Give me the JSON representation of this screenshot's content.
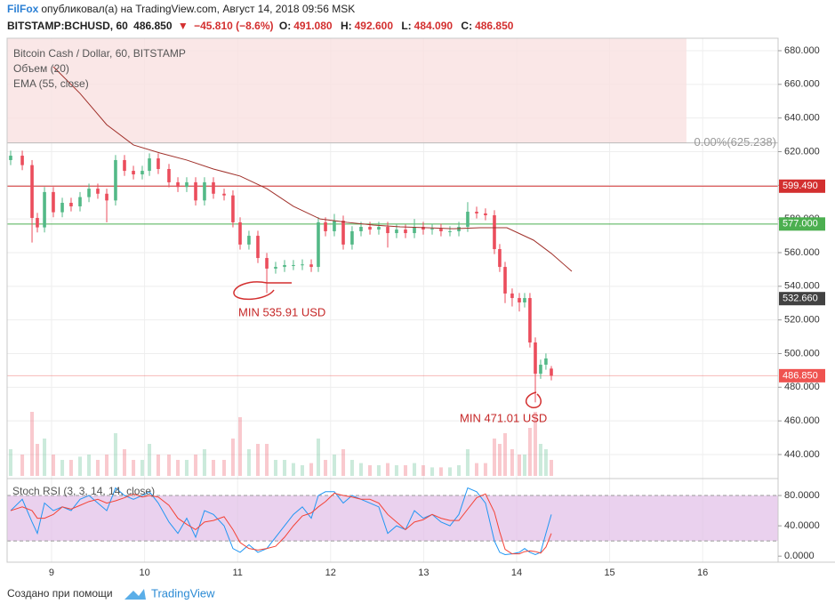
{
  "header": {
    "author": "FilFox",
    "published": "опубликовал(а) на TradingView.com, Август 14, 2018 09:56 MSK",
    "symbol": "BITSTAMP:BCHUSD, 60",
    "price": "486.850",
    "direction": "▼",
    "change": "−45.810 (−8.6%)",
    "ohlc": [
      {
        "label": "O:",
        "value": "491.080"
      },
      {
        "label": "H:",
        "value": "492.600"
      },
      {
        "label": "L:",
        "value": "484.090"
      },
      {
        "label": "C:",
        "value": "486.850"
      }
    ]
  },
  "footer": {
    "text": "Создано при помощи",
    "brand": "TradingView"
  },
  "chart_data": [
    {
      "type": "candlestick",
      "title": "Bitcoin Cash / Dollar, 60, BITSTAMP",
      "up_color": "#53b987",
      "down_color": "#eb4d5c",
      "grid": true,
      "x": [
        8.56,
        8.685,
        8.79,
        8.847,
        8.924,
        9.019,
        9.115,
        9.21,
        9.306,
        9.402,
        9.497,
        9.593,
        9.688,
        9.784,
        9.88,
        9.975,
        10.052,
        10.147,
        10.262,
        10.358,
        10.453,
        10.549,
        10.644,
        10.74,
        10.855,
        10.95,
        11.027,
        11.122,
        11.218,
        11.314,
        11.409,
        11.505,
        11.6,
        11.696,
        11.792,
        11.868,
        11.945,
        12.04,
        12.136,
        12.231,
        12.327,
        12.423,
        12.518,
        12.614,
        12.709,
        12.805,
        12.901,
        12.996,
        13.092,
        13.187,
        13.283,
        13.379,
        13.474,
        13.57,
        13.665,
        13.761,
        13.818,
        13.876,
        13.952,
        14.029,
        14.086,
        14.143,
        14.201,
        14.258,
        14.315,
        14.373
      ],
      "open": [
        615,
        617.6,
        612,
        580.6,
        575,
        596,
        584,
        589.6,
        587.5,
        593,
        598,
        595,
        591,
        615,
        608.6,
        606.5,
        608.6,
        616,
        609.7,
        601.8,
        599,
        601.8,
        591,
        601.8,
        595,
        594,
        578,
        564.8,
        570,
        556.8,
        550.5,
        551.5,
        552.6,
        552.6,
        553,
        551.5,
        578,
        572.7,
        579,
        564.8,
        572.7,
        575.3,
        573.7,
        575.3,
        571.6,
        573.7,
        571.6,
        575.3,
        573.7,
        574.2,
        572.7,
        572.7,
        575.3,
        584.3,
        583.3,
        582.2,
        562.1,
        551.5,
        535.7,
        533,
        530.4,
        533,
        506.6,
        488,
        493.4,
        491.08
      ],
      "high": [
        620.6,
        620.6,
        615,
        583.6,
        599,
        599,
        592.6,
        592.6,
        596,
        601,
        601,
        598,
        618,
        618,
        611.6,
        611.6,
        619,
        619,
        612.7,
        604.8,
        604.8,
        604.8,
        604.8,
        604.8,
        598,
        597,
        581,
        573,
        573,
        559.8,
        554.5,
        555.6,
        555.6,
        556,
        556,
        581,
        581,
        583,
        582,
        575.7,
        578.3,
        578.3,
        578.3,
        578.3,
        576.7,
        576.7,
        580,
        578.3,
        577.2,
        577.2,
        575.7,
        578.3,
        590,
        587.3,
        586.3,
        585.2,
        565.1,
        554.5,
        538.7,
        536,
        536,
        536,
        509.6,
        496.4,
        500.1,
        492.6
      ],
      "low": [
        612,
        609,
        566,
        572,
        572,
        581,
        581,
        584.5,
        584.5,
        590,
        592,
        578,
        588,
        605.6,
        603.5,
        603.5,
        605.6,
        606.7,
        598.8,
        596,
        596,
        588,
        588,
        592,
        591,
        575,
        561.8,
        561.8,
        553.8,
        535.91,
        547.5,
        548.5,
        549.6,
        549.6,
        548.5,
        548.5,
        569.7,
        569.7,
        561.8,
        561.8,
        569.7,
        570.7,
        570.7,
        563,
        568.6,
        568.6,
        568.6,
        570.7,
        570.7,
        569.7,
        569.7,
        569.7,
        572.3,
        580.3,
        579.2,
        559.1,
        548.5,
        530,
        528,
        525,
        527.4,
        503.6,
        471.01,
        485,
        490.4,
        484.09
      ],
      "close": [
        617.6,
        612,
        580.6,
        575,
        596,
        584,
        589.6,
        587.5,
        593,
        598,
        595,
        591,
        615,
        608.6,
        606.5,
        608.6,
        616,
        609.7,
        601.8,
        599,
        601.8,
        591,
        601.8,
        595,
        594,
        578,
        564.8,
        570,
        556.8,
        550.5,
        551.5,
        552.6,
        552.6,
        553,
        551.5,
        578,
        572.7,
        579,
        564.8,
        572.7,
        575.3,
        573.7,
        575.3,
        571.6,
        573.7,
        571.6,
        575.3,
        573.7,
        574.2,
        572.7,
        572.7,
        575.3,
        584.3,
        583.3,
        582.2,
        562.1,
        551.5,
        535.7,
        533,
        530.4,
        533,
        506.6,
        488,
        493.4,
        497.1,
        486.85
      ],
      "volume": {
        "name": "Объем (20)",
        "values": [
          25,
          20,
          60,
          30,
          35,
          20,
          15,
          15,
          18,
          20,
          15,
          20,
          40,
          25,
          15,
          15,
          30,
          20,
          20,
          15,
          15,
          20,
          25,
          15,
          15,
          35,
          55,
          25,
          30,
          30,
          15,
          15,
          12,
          10,
          12,
          35,
          15,
          20,
          25,
          15,
          12,
          10,
          10,
          12,
          10,
          10,
          12,
          10,
          8,
          8,
          8,
          10,
          25,
          12,
          12,
          35,
          30,
          40,
          25,
          20,
          20,
          45,
          60,
          30,
          25,
          15
        ]
      },
      "ema": {
        "name": "EMA (55, close)",
        "color": "#a0302a",
        "x": [
          9.019,
          9.306,
          9.593,
          9.88,
          10.166,
          10.453,
          10.74,
          11.027,
          11.314,
          11.6,
          11.887,
          12.174,
          12.461,
          12.748,
          13.034,
          13.321,
          13.608,
          13.895,
          14.182,
          14.373,
          14.593
        ],
        "values": [
          670.5,
          654.6,
          636,
          624,
          619.2,
          615,
          609.7,
          605.5,
          598,
          587.5,
          580,
          578,
          576.4,
          575.3,
          574.8,
          574.2,
          574.8,
          574.8,
          567.4,
          559.5,
          548.9
        ]
      },
      "fib": {
        "level": 625.238,
        "x_end": 15.826,
        "label": "0.00%(625.238)"
      },
      "hlines": [
        {
          "value": 599.49,
          "label": "599.490",
          "color": "#d32f2f",
          "line": true
        },
        {
          "value": 577,
          "label": "577.000",
          "color": "#4caf50",
          "line": true
        },
        {
          "value": 532.66,
          "label": "532.660",
          "color": "#424242",
          "line": false
        },
        {
          "value": 486.85,
          "label": "486.850",
          "color": "#ef5350",
          "line": true
        }
      ],
      "annotations": [
        {
          "text": "MIN 535.91 USD"
        },
        {
          "text": "MIN 471.01 USD"
        }
      ],
      "xlim": [
        8.522,
        16.811
      ],
      "xticks": [
        9,
        10,
        11,
        12,
        13,
        14,
        15,
        16
      ],
      "ylim": [
        427.3,
        687.4
      ],
      "yticks": [
        {
          "value": 440,
          "label": "440.000"
        },
        {
          "value": 460,
          "label": "460.000"
        },
        {
          "value": 480,
          "label": "480.000"
        },
        {
          "value": 500,
          "label": "500.000"
        },
        {
          "value": 520,
          "label": "520.000"
        },
        {
          "value": 540,
          "label": "540.000"
        },
        {
          "value": 560,
          "label": "560.000"
        },
        {
          "value": 580,
          "label": "580.000"
        },
        {
          "value": 600,
          "label": "600.000"
        },
        {
          "value": 620,
          "label": "620.000"
        },
        {
          "value": 640,
          "label": "640.000"
        },
        {
          "value": 660,
          "label": "660.000"
        },
        {
          "value": 680,
          "label": "680.000"
        }
      ]
    },
    {
      "type": "line",
      "title": "Stoch RSI (3, 3, 14, 14, close)",
      "band": [
        20,
        80
      ],
      "band_color": "#e1bee7",
      "x": [
        8.56,
        8.685,
        8.79,
        8.847,
        8.924,
        9.019,
        9.115,
        9.21,
        9.306,
        9.402,
        9.497,
        9.593,
        9.688,
        9.784,
        9.88,
        9.975,
        10.052,
        10.147,
        10.262,
        10.358,
        10.453,
        10.549,
        10.644,
        10.74,
        10.855,
        10.95,
        11.027,
        11.122,
        11.218,
        11.314,
        11.409,
        11.505,
        11.6,
        11.696,
        11.792,
        11.868,
        11.945,
        12.04,
        12.136,
        12.231,
        12.327,
        12.423,
        12.518,
        12.614,
        12.709,
        12.805,
        12.901,
        12.996,
        13.092,
        13.187,
        13.283,
        13.379,
        13.474,
        13.57,
        13.665,
        13.761,
        13.818,
        13.876,
        13.952,
        14.029,
        14.086,
        14.143,
        14.201,
        14.258,
        14.315,
        14.373
      ],
      "series": [
        {
          "color": "#2196f3",
          "values": [
            60,
            75,
            45,
            30,
            70,
            60,
            65,
            60,
            75,
            80,
            70,
            60,
            90,
            80,
            75,
            80,
            85,
            70,
            45,
            30,
            50,
            25,
            60,
            55,
            40,
            10,
            5,
            15,
            5,
            10,
            25,
            40,
            55,
            65,
            50,
            80,
            85,
            85,
            70,
            80,
            75,
            70,
            65,
            30,
            40,
            35,
            60,
            50,
            55,
            45,
            40,
            55,
            90,
            85,
            70,
            20,
            5,
            2,
            3,
            5,
            10,
            5,
            2,
            5,
            30,
            55
          ]
        },
        {
          "color": "#f44336",
          "values": [
            60,
            65,
            60,
            50,
            50,
            55,
            65,
            62,
            67,
            72,
            75,
            70,
            73,
            77,
            82,
            78,
            80,
            78,
            67,
            50,
            42,
            35,
            45,
            47,
            52,
            35,
            18,
            10,
            8,
            10,
            13,
            25,
            40,
            53,
            57,
            65,
            72,
            83,
            80,
            78,
            75,
            75,
            70,
            55,
            45,
            35,
            45,
            48,
            55,
            50,
            47,
            47,
            62,
            77,
            82,
            58,
            32,
            9,
            3,
            3,
            6,
            7,
            6,
            4,
            12,
            30
          ]
        }
      ],
      "ylim": [
        -8,
        100
      ],
      "yticks": [
        {
          "value": 0,
          "label": "0.0000"
        },
        {
          "value": 40,
          "label": "40.0000"
        },
        {
          "value": 80,
          "label": "80.0000"
        }
      ]
    }
  ]
}
